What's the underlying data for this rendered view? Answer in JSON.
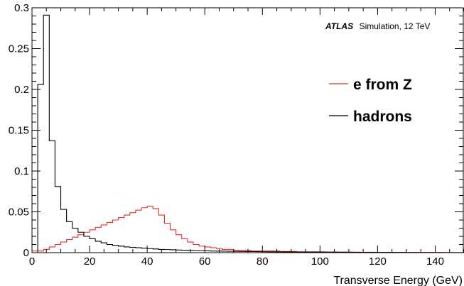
{
  "chart_data": {
    "type": "line",
    "xlabel": "Transverse Energy (GeV)",
    "ylabel": "",
    "xlim": [
      0,
      150
    ],
    "ylim": [
      0,
      0.3
    ],
    "x_ticks": [
      0,
      20,
      40,
      60,
      80,
      100,
      120,
      140
    ],
    "x_tick_labels": [
      "0",
      "20",
      "40",
      "60",
      "80",
      "100",
      "120",
      "140"
    ],
    "y_ticks": [
      0,
      0.05,
      0.1,
      0.15,
      0.2,
      0.25,
      0.3
    ],
    "y_tick_labels": [
      "0",
      "0.05",
      "0.1",
      "0.15",
      "0.2",
      "0.25",
      "0.3"
    ],
    "bin_width": 2,
    "annotation": {
      "bold": "ATLAS",
      "rest": "Simulation, 12 TeV"
    },
    "legend_position": "right",
    "series": [
      {
        "name": "e from Z",
        "color": "#e8302e",
        "style": "histogram",
        "values": [
          0.002,
          0.002,
          0.004,
          0.007,
          0.01,
          0.013,
          0.016,
          0.019,
          0.022,
          0.025,
          0.028,
          0.031,
          0.034,
          0.037,
          0.04,
          0.043,
          0.046,
          0.049,
          0.052,
          0.055,
          0.057,
          0.054,
          0.046,
          0.036,
          0.028,
          0.022,
          0.017,
          0.013,
          0.01,
          0.008,
          0.007,
          0.006,
          0.005,
          0.004,
          0.004,
          0.003,
          0.003,
          0.003,
          0.002,
          0.002,
          0.002,
          0.002,
          0.002,
          0.0015,
          0.0015,
          0.0015,
          0.001,
          0.001,
          0.001,
          0.001,
          0.001,
          0.0008,
          0.0008,
          0.0007,
          0.0007,
          0.0006,
          0.0006,
          0.0005,
          0.0005,
          0.0005,
          0.0004,
          0.0004,
          0.0004,
          0.0003,
          0.0003,
          0.0003,
          0.0003,
          0.0002,
          0.0002,
          0.0002,
          0.0002,
          0.0002,
          0.0002,
          0.0001,
          0.0001
        ]
      },
      {
        "name": "hadrons",
        "color": "#000000",
        "style": "histogram",
        "values": [
          0,
          0.206,
          0.291,
          0.137,
          0.081,
          0.053,
          0.038,
          0.03,
          0.025,
          0.02,
          0.017,
          0.014,
          0.012,
          0.01,
          0.009,
          0.008,
          0.007,
          0.0065,
          0.006,
          0.0055,
          0.005,
          0.0045,
          0.004,
          0.0038,
          0.0035,
          0.0032,
          0.003,
          0.0028,
          0.0026,
          0.0024,
          0.0022,
          0.002,
          0.0019,
          0.0018,
          0.0017,
          0.0016,
          0.0015,
          0.0014,
          0.0013,
          0.0012,
          0.0011,
          0.001,
          0.001,
          0.0009,
          0.0009,
          0.0008,
          0.0008,
          0.0007,
          0.0007,
          0.0007,
          0.0006,
          0.0006,
          0.0006,
          0.0005,
          0.0005,
          0.0005,
          0.0004,
          0.0004,
          0.0004,
          0.0004,
          0.0003,
          0.0003,
          0.0003,
          0.0003,
          0.0003,
          0.0002,
          0.0002,
          0.0002,
          0.0002,
          0.0002,
          0.0002,
          0.0001,
          0.0001,
          0.0001,
          0.0001
        ]
      }
    ]
  }
}
